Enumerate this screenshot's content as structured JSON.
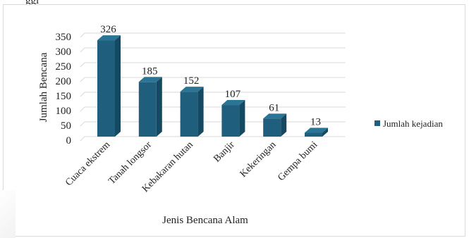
{
  "header_fragment": "ggi",
  "chart_data": {
    "type": "bar",
    "style": "3d-column",
    "categories": [
      "Cuaca ekstrem",
      "Tanah longsor",
      "Kebakaran hutan",
      "Banjir",
      "Kekeringan",
      "Gempa bumi"
    ],
    "series": [
      {
        "name": "Jumlah kejadian",
        "values": [
          326,
          185,
          152,
          107,
          61,
          13
        ]
      }
    ],
    "title": "",
    "xlabel": "Jenis Bencana Alam",
    "ylabel": "Jumlah Bencana",
    "ylim": [
      0,
      350
    ],
    "yticks": [
      0,
      50,
      100,
      150,
      200,
      250,
      300,
      350
    ],
    "grid": true,
    "legend": "right",
    "colors": {
      "bar_front": "#1f5f7d",
      "bar_side": "#154861",
      "bar_top": "#2a7596",
      "grid": "#d9d9d9"
    }
  }
}
